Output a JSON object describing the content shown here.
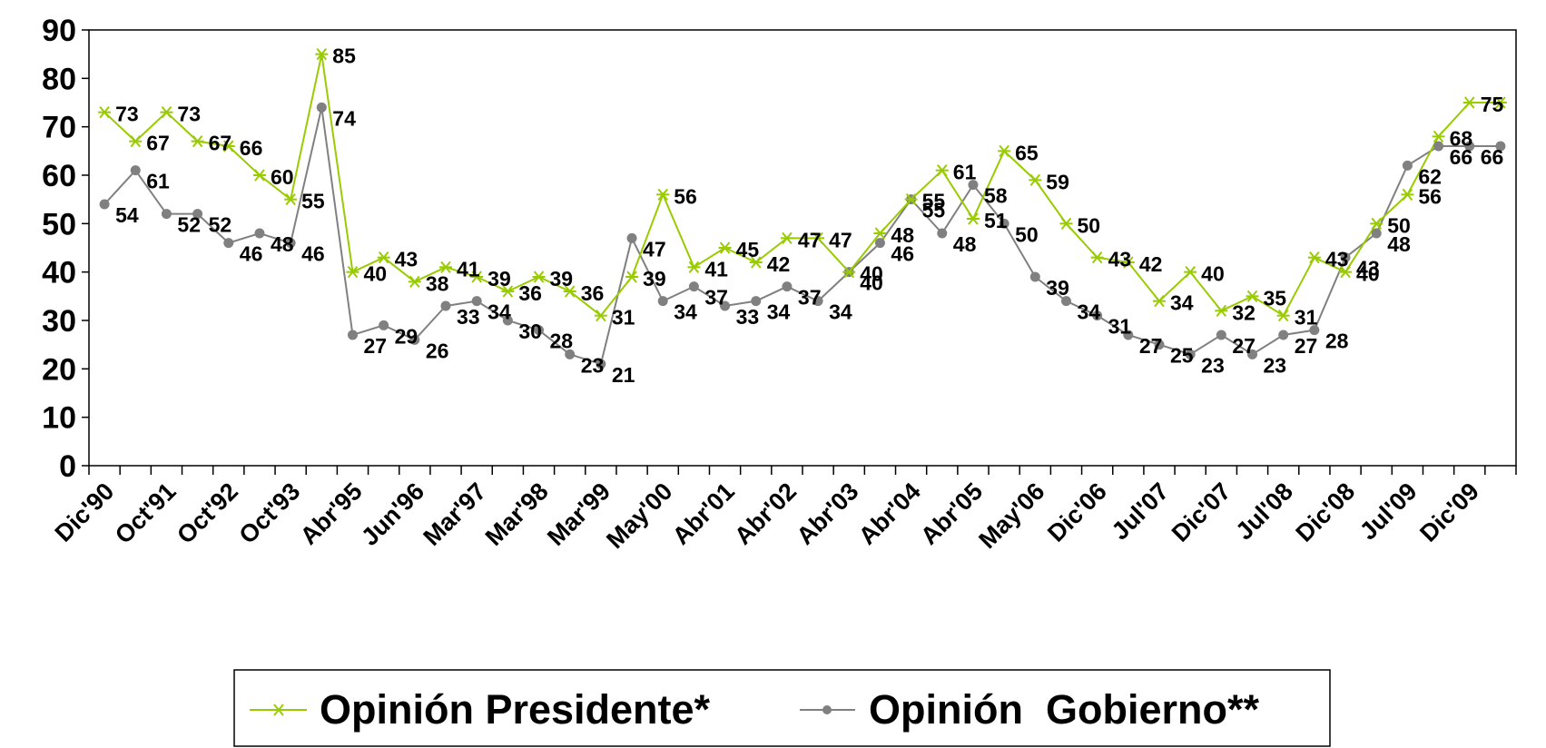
{
  "chart_data": {
    "type": "line",
    "title": "",
    "xlabel": "",
    "ylabel": "",
    "ylim": [
      0,
      90
    ],
    "yticks": [
      "0",
      "10",
      "20",
      "30",
      "40",
      "50",
      "60",
      "70",
      "80",
      "90"
    ],
    "xtick_labels": [
      "Dic'90",
      "Oct'91",
      "Oct'92",
      "Oct'93",
      "Abr'95",
      "Jun'96",
      "Mar'97",
      "Mar'98",
      "Mar'99",
      "May'00",
      "Abr'01",
      "Abr'02",
      "Abr'03",
      "Abr'04",
      "Abr'05",
      "May'06",
      "Dic'06",
      "Jul'07",
      "Dic'07",
      "Jul'08",
      "Dic'08",
      "Jul'09",
      "Dic'09"
    ],
    "n_points": 46,
    "grid": false,
    "legend_position": "bottom",
    "series": [
      {
        "name": "Opinión Presidente*",
        "color": "#99CC00",
        "marker": "star",
        "values": [
          73,
          67,
          73,
          67,
          66,
          60,
          55,
          85,
          40,
          43,
          38,
          41,
          39,
          36,
          39,
          36,
          31,
          39,
          56,
          41,
          45,
          42,
          47,
          47,
          40,
          48,
          55,
          61,
          51,
          65,
          59,
          50,
          43,
          42,
          34,
          40,
          32,
          35,
          31,
          43,
          40,
          50,
          56,
          68,
          75,
          75
        ]
      },
      {
        "name": "Opinión  Gobierno**",
        "color": "#808080",
        "marker": "circle",
        "values": [
          54,
          61,
          52,
          52,
          46,
          48,
          46,
          74,
          27,
          29,
          26,
          33,
          34,
          30,
          28,
          23,
          21,
          47,
          34,
          37,
          33,
          34,
          37,
          34,
          40,
          46,
          55,
          48,
          58,
          50,
          39,
          34,
          31,
          27,
          25,
          23,
          27,
          23,
          27,
          28,
          43,
          48,
          62,
          66,
          66,
          66
        ]
      }
    ],
    "data_labels": {
      "presidente": [
        "73",
        "67",
        "73",
        "67",
        "66",
        "60",
        "55",
        "85",
        "40",
        "43",
        "38",
        "41",
        "39",
        "36",
        "39",
        "36",
        "31",
        "39",
        "56",
        "41",
        "45",
        "42",
        "47",
        "47",
        "40",
        "48",
        "55",
        "61",
        "51",
        "65",
        "59",
        "50",
        "43",
        "42",
        "34",
        "40",
        "32",
        "35",
        "31",
        "43",
        "40",
        "50",
        "56",
        "68",
        "75",
        "75"
      ],
      "gobierno": [
        "54",
        "61",
        "52",
        "52",
        "46",
        "48",
        "46",
        "74",
        "27",
        "29",
        "26",
        "33",
        "34",
        "30",
        "28",
        "23",
        "21",
        "47",
        "34",
        "37",
        "33",
        "34",
        "37",
        "34",
        "40",
        "46",
        "55",
        "48",
        "58",
        "50",
        "39",
        "34",
        "31",
        "27",
        "25",
        "23",
        "27",
        "23",
        "27",
        "28",
        "43",
        "48",
        "62",
        "66",
        "66",
        "66"
      ]
    }
  },
  "legend": {
    "presidente": "Opinión Presidente*",
    "gobierno": "Opinión  Gobierno**"
  }
}
